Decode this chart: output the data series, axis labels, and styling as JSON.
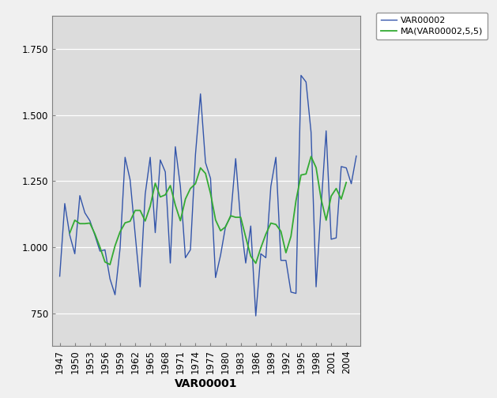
{
  "years": [
    1947,
    1948,
    1949,
    1950,
    1951,
    1952,
    1953,
    1954,
    1955,
    1956,
    1957,
    1958,
    1959,
    1960,
    1961,
    1962,
    1963,
    1964,
    1965,
    1966,
    1967,
    1968,
    1969,
    1970,
    1971,
    1972,
    1973,
    1974,
    1975,
    1976,
    1977,
    1978,
    1979,
    1980,
    1981,
    1982,
    1983,
    1984,
    1985,
    1986,
    1987,
    1988,
    1989,
    1990,
    1991,
    1992,
    1993,
    1994,
    1995,
    1996,
    1997,
    1998,
    1999,
    2000,
    2001,
    2002,
    2003,
    2004,
    2005,
    2006
  ],
  "var00002": [
    0.89,
    1.165,
    1.045,
    0.975,
    1.195,
    1.13,
    1.1,
    1.045,
    0.985,
    0.99,
    0.88,
    0.82,
    0.995,
    1.34,
    1.255,
    1.05,
    0.85,
    1.2,
    1.34,
    1.055,
    1.33,
    1.285,
    0.94,
    1.38,
    1.23,
    0.96,
    0.99,
    1.35,
    1.58,
    1.32,
    1.26,
    0.885,
    0.97,
    1.08,
    1.115,
    1.335,
    1.095,
    0.94,
    1.08,
    0.74,
    0.975,
    0.96,
    1.23,
    1.34,
    0.95,
    0.95,
    0.83,
    0.825,
    1.65,
    1.625,
    1.435,
    0.85,
    1.155,
    1.44,
    1.03,
    1.035,
    1.305,
    1.3,
    1.24,
    1.345
  ],
  "line_color": "#3355AA",
  "ma_color": "#33AA33",
  "plot_bg_color": "#DCDCDC",
  "fig_bg_color": "#F0F0F0",
  "xlabel": "VAR00001",
  "ylim_bottom": 0.625,
  "ylim_top": 1.875,
  "ytick_vals": [
    0.75,
    1.0,
    1.25,
    1.5,
    1.75
  ],
  "ytick_labels": [
    "750",
    "1.000",
    "1.250",
    "1.500",
    "1.750"
  ],
  "xtick_years": [
    1947,
    1950,
    1953,
    1956,
    1959,
    1962,
    1965,
    1968,
    1971,
    1974,
    1977,
    1980,
    1983,
    1986,
    1989,
    1992,
    1995,
    1998,
    2001,
    2004
  ],
  "legend_labels": [
    "VAR00002",
    "MA(VAR00002,5,5)"
  ],
  "ma_window": 5,
  "xlim_left": 1945.5,
  "xlim_right": 2006.8
}
